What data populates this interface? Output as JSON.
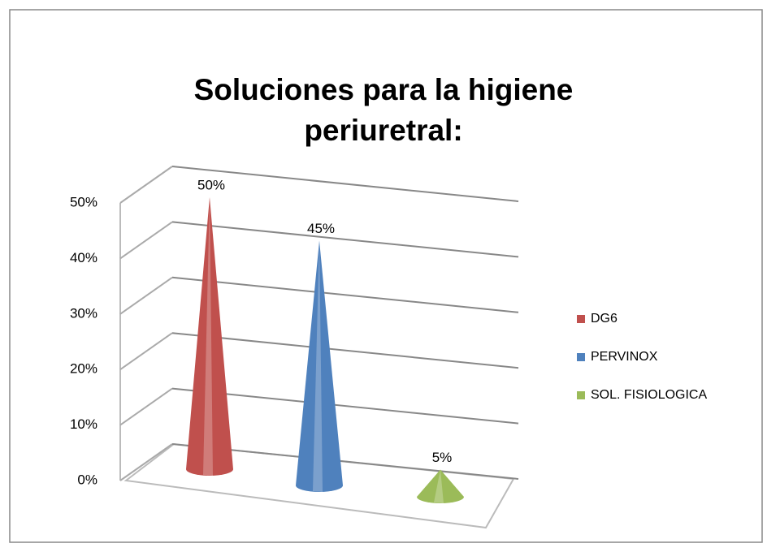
{
  "chart_data": {
    "type": "cone",
    "title": "Soluciones para la higiene periuretral:",
    "series": [
      {
        "name": "DG6",
        "color": "#c0504d",
        "values": [
          50
        ],
        "value_labels": [
          "50%"
        ]
      },
      {
        "name": "PERVINOX",
        "color": "#4f81bd",
        "values": [
          45
        ],
        "value_labels": [
          "45%"
        ]
      },
      {
        "name": "SOL. FISIOLOGICA",
        "color": "#9bbb59",
        "values": [
          5
        ],
        "value_labels": [
          "5%"
        ]
      }
    ],
    "ylim": [
      0,
      50
    ],
    "yticks": [
      {
        "value": 0,
        "label": "0%"
      },
      {
        "value": 10,
        "label": "10%"
      },
      {
        "value": 20,
        "label": "20%"
      },
      {
        "value": 30,
        "label": "30%"
      },
      {
        "value": 40,
        "label": "40%"
      },
      {
        "value": 50,
        "label": "50%"
      }
    ],
    "grid": true
  }
}
